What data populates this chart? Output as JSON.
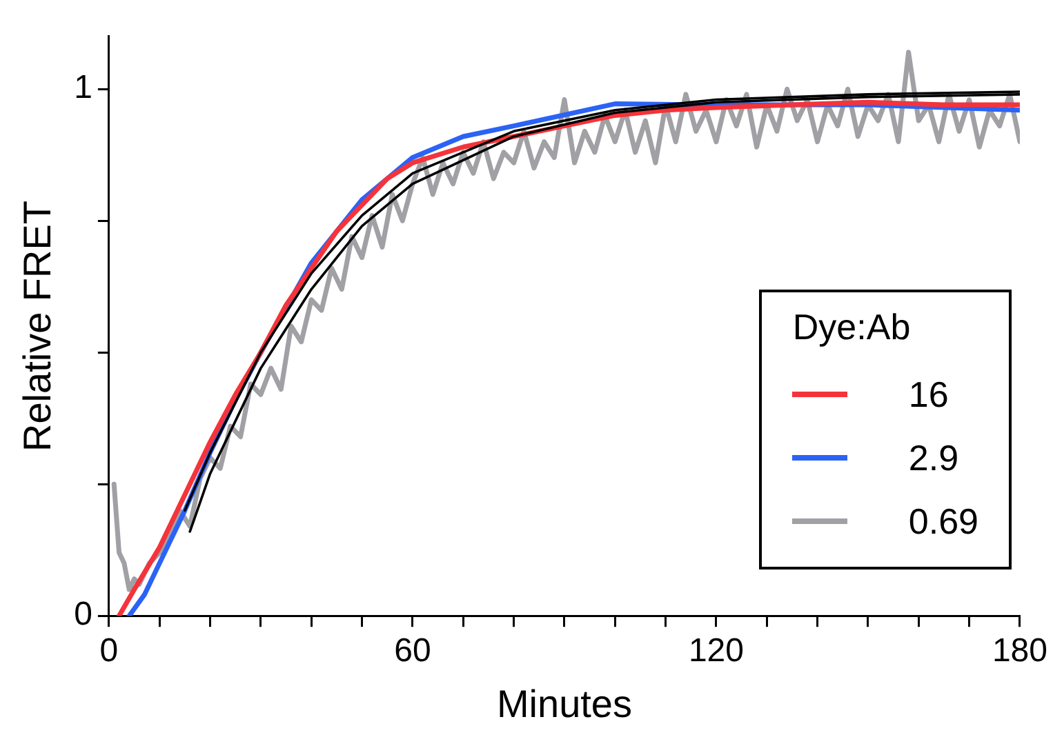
{
  "chart_data": {
    "type": "line",
    "xlabel": "Minutes",
    "ylabel": "Relative FRET",
    "legend_title": "Dye:Ab",
    "legend": "bottom right",
    "grid": false,
    "marker": "none",
    "line_style": "solid",
    "xlim": [
      0,
      180
    ],
    "ylim": [
      0,
      1.1
    ],
    "xticks": [
      0,
      {
        "value": 10,
        "label": null
      },
      {
        "value": 20,
        "label": null
      },
      {
        "value": 30,
        "label": null
      },
      {
        "value": 40,
        "label": null
      },
      {
        "value": 50,
        "label": null
      },
      60,
      {
        "value": 70,
        "label": null
      },
      {
        "value": 80,
        "label": null
      },
      {
        "value": 90,
        "label": null
      },
      {
        "value": 100,
        "label": null
      },
      {
        "value": 110,
        "label": null
      },
      120,
      {
        "value": 130,
        "label": null
      },
      {
        "value": 140,
        "label": null
      },
      {
        "value": 150,
        "label": null
      },
      {
        "value": 160,
        "label": null
      },
      {
        "value": 170,
        "label": null
      },
      180
    ],
    "yticks": [
      0,
      {
        "value": 0.25,
        "label": null
      },
      {
        "value": 0.5,
        "label": null
      },
      {
        "value": 0.75,
        "label": null
      },
      1
    ],
    "series": [
      {
        "name": "0.69",
        "color": "#a0a0a5",
        "x": [
          1,
          2,
          3,
          4,
          5,
          6,
          8,
          10,
          12,
          14,
          16,
          18,
          20,
          22,
          24,
          26,
          28,
          30,
          32,
          34,
          36,
          38,
          40,
          42,
          44,
          46,
          48,
          50,
          52,
          54,
          56,
          58,
          60,
          62,
          64,
          66,
          68,
          70,
          72,
          74,
          76,
          78,
          80,
          82,
          84,
          86,
          88,
          90,
          92,
          94,
          96,
          98,
          100,
          102,
          104,
          106,
          108,
          110,
          112,
          114,
          116,
          118,
          120,
          122,
          124,
          126,
          128,
          130,
          132,
          134,
          136,
          138,
          140,
          142,
          144,
          146,
          148,
          150,
          152,
          154,
          156,
          158,
          160,
          162,
          164,
          166,
          168,
          170,
          172,
          174,
          176,
          178,
          180
        ],
        "values": [
          0.25,
          0.12,
          0.1,
          0.05,
          0.07,
          0.06,
          0.1,
          0.12,
          0.16,
          0.2,
          0.17,
          0.26,
          0.3,
          0.28,
          0.36,
          0.34,
          0.44,
          0.42,
          0.47,
          0.43,
          0.55,
          0.52,
          0.6,
          0.58,
          0.66,
          0.62,
          0.72,
          0.68,
          0.76,
          0.7,
          0.8,
          0.75,
          0.82,
          0.87,
          0.8,
          0.86,
          0.82,
          0.88,
          0.84,
          0.9,
          0.83,
          0.88,
          0.86,
          0.92,
          0.85,
          0.9,
          0.87,
          0.98,
          0.86,
          0.92,
          0.88,
          0.95,
          0.9,
          0.96,
          0.88,
          0.94,
          0.86,
          0.97,
          0.9,
          0.99,
          0.92,
          0.96,
          0.9,
          0.98,
          0.93,
          0.99,
          0.89,
          0.97,
          0.92,
          1.0,
          0.94,
          0.98,
          0.9,
          0.97,
          0.93,
          1.0,
          0.91,
          0.97,
          0.94,
          0.99,
          0.9,
          1.07,
          0.94,
          0.97,
          0.9,
          0.99,
          0.92,
          0.98,
          0.89,
          0.96,
          0.93,
          0.99,
          0.9
        ]
      },
      {
        "name": "2.9",
        "color": "#2b63f5",
        "x": [
          4,
          7,
          10,
          15,
          20,
          25,
          30,
          40,
          50,
          60,
          70,
          80,
          100,
          120,
          150,
          180
        ],
        "values": [
          0,
          0.04,
          0.1,
          0.2,
          0.31,
          0.41,
          0.5,
          0.67,
          0.79,
          0.87,
          0.91,
          0.93,
          0.972,
          0.97,
          0.97,
          0.96
        ]
      },
      {
        "name": "16",
        "color": "#f5333a",
        "x": [
          2,
          5,
          10,
          15,
          20,
          25,
          30,
          35,
          40,
          45,
          50,
          55,
          60,
          70,
          80,
          90,
          100,
          110,
          120,
          135,
          150,
          165,
          180
        ],
        "values": [
          0,
          0.05,
          0.13,
          0.23,
          0.33,
          0.42,
          0.5,
          0.59,
          0.66,
          0.73,
          0.78,
          0.83,
          0.86,
          0.89,
          0.91,
          0.93,
          0.95,
          0.96,
          0.965,
          0.97,
          0.975,
          0.97,
          0.97
        ]
      },
      {
        "color": "#000000",
        "x": [
          15,
          20,
          30,
          40,
          50,
          60,
          80,
          100,
          120,
          150,
          180
        ],
        "values": [
          0.2,
          0.31,
          0.5,
          0.65,
          0.76,
          0.84,
          0.92,
          0.96,
          0.98,
          0.99,
          0.995
        ]
      },
      {
        "color": "#000000",
        "x": [
          16,
          20,
          30,
          40,
          50,
          60,
          80,
          100,
          120,
          150,
          180
        ],
        "values": [
          0.16,
          0.27,
          0.47,
          0.62,
          0.74,
          0.82,
          0.91,
          0.955,
          0.975,
          0.985,
          0.99
        ]
      }
    ]
  }
}
